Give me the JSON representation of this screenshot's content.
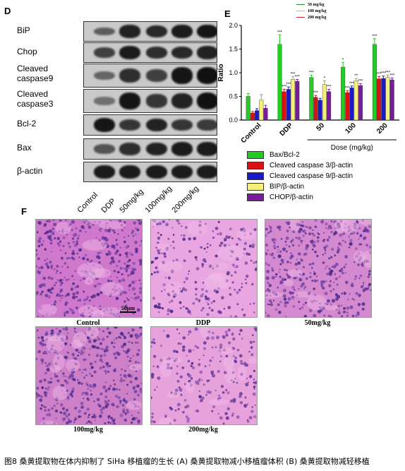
{
  "panel_d": {
    "letter": "D",
    "rows": [
      {
        "label": "BiP",
        "intensity": [
          0.35,
          0.85,
          0.8,
          0.9,
          0.95
        ]
      },
      {
        "label": "Chop",
        "intensity": [
          0.6,
          0.9,
          0.75,
          0.8,
          0.85
        ]
      },
      {
        "label": "Cleaved caspase9",
        "intensity": [
          0.3,
          0.75,
          0.6,
          0.95,
          1.0
        ]
      },
      {
        "label": "Cleaved caspase3",
        "intensity": [
          0.2,
          0.95,
          0.7,
          0.85,
          1.0
        ]
      },
      {
        "label": "Bcl-2",
        "intensity": [
          0.95,
          0.7,
          0.85,
          0.7,
          0.65
        ]
      },
      {
        "label": "Bax",
        "intensity": [
          0.45,
          0.75,
          0.85,
          0.9,
          0.9
        ]
      },
      {
        "label": "β-actin",
        "intensity": [
          0.9,
          0.9,
          0.9,
          0.9,
          0.9
        ]
      }
    ],
    "lanes": [
      "Control",
      "DDP",
      "50mg/kg",
      "100mg/kg",
      "200mg/kg"
    ]
  },
  "panel_e": {
    "letter": "E",
    "top_legend": [
      {
        "label": "50 mg/kg",
        "color": "#2e8b2e"
      },
      {
        "label": "100 mg/kg",
        "color": "#e6c200"
      },
      {
        "label": "200 mg/kg",
        "color": "#cc2222"
      }
    ],
    "legend_items": [
      {
        "label": "Bax/Bcl-2",
        "color": "#22cc22"
      },
      {
        "label": "Cleaved caspase 3/β-actin",
        "color": "#dd1111"
      },
      {
        "label": "Cleaved caspase 9/β-actin",
        "color": "#1a1acc"
      },
      {
        "label": "BIP/β-actin",
        "color": "#f5f07a"
      },
      {
        "label": "CHOP/β-actin",
        "color": "#7a1a9e"
      }
    ],
    "dose_label": "Dose (mg/kg)"
  },
  "chart_data": {
    "type": "bar",
    "categories": [
      "Control",
      "DDP",
      "50",
      "100",
      "200"
    ],
    "ylabel": "Ratio",
    "xlabel": "Dose (mg/kg)",
    "ylim": [
      0,
      2.0
    ],
    "yticks": [
      "0.0",
      "0.5",
      "1.0",
      "1.5",
      "2.0"
    ],
    "legend_position": "bottom",
    "series": [
      {
        "name": "Bax/Bcl-2",
        "color": "#22cc22",
        "values": [
          0.5,
          1.6,
          0.9,
          1.12,
          1.6
        ],
        "errors": [
          0.06,
          0.2,
          0.05,
          0.1,
          0.12
        ],
        "sig": [
          "",
          "***",
          "***",
          "*",
          "***"
        ]
      },
      {
        "name": "Cleaved caspase 3/β-actin",
        "color": "#dd1111",
        "values": [
          0.15,
          0.6,
          0.48,
          0.58,
          0.87
        ],
        "errors": [
          0.03,
          0.05,
          0.04,
          0.04,
          0.05
        ],
        "sig": [
          "",
          "***",
          "***",
          "***",
          "***"
        ]
      },
      {
        "name": "Cleaved caspase 9/β-actin",
        "color": "#1a1acc",
        "values": [
          0.2,
          0.65,
          0.42,
          0.68,
          0.88
        ],
        "errors": [
          0.04,
          0.05,
          0.04,
          0.04,
          0.05
        ],
        "sig": [
          "",
          "***",
          "",
          "***",
          "***"
        ]
      },
      {
        "name": "BIP/β-actin",
        "color": "#f5f07a",
        "values": [
          0.42,
          0.86,
          0.75,
          0.83,
          0.9
        ],
        "errors": [
          0.12,
          0.06,
          0.08,
          0.05,
          0.05
        ],
        "sig": [
          "",
          "***",
          "*",
          "**",
          "***"
        ]
      },
      {
        "name": "CHOP/β-actin",
        "color": "#7a1a9e",
        "values": [
          0.25,
          0.82,
          0.6,
          0.73,
          0.85
        ],
        "errors": [
          0.06,
          0.04,
          0.05,
          0.04,
          0.04
        ],
        "sig": [
          "",
          "***",
          "***",
          "***",
          "***"
        ]
      }
    ]
  },
  "panel_f": {
    "letter": "F",
    "scale_bar": "50μm",
    "images": [
      {
        "caption": "Control",
        "tone": "#d079cc"
      },
      {
        "caption": "DDP",
        "tone": "#e9a6e0"
      },
      {
        "caption": "50mg/kg",
        "tone": "#d58ad0"
      },
      {
        "caption": "100mg/kg",
        "tone": "#cd7fc8"
      },
      {
        "caption": "200mg/kg",
        "tone": "#e7a2dc"
      }
    ]
  },
  "caption": "图8  桑黄提取物在体内抑制了 SiHa 移植瘤的生长 (A) 桑黄提取物减小移植瘤体积 (B) 桑黄提取物减轻移植"
}
